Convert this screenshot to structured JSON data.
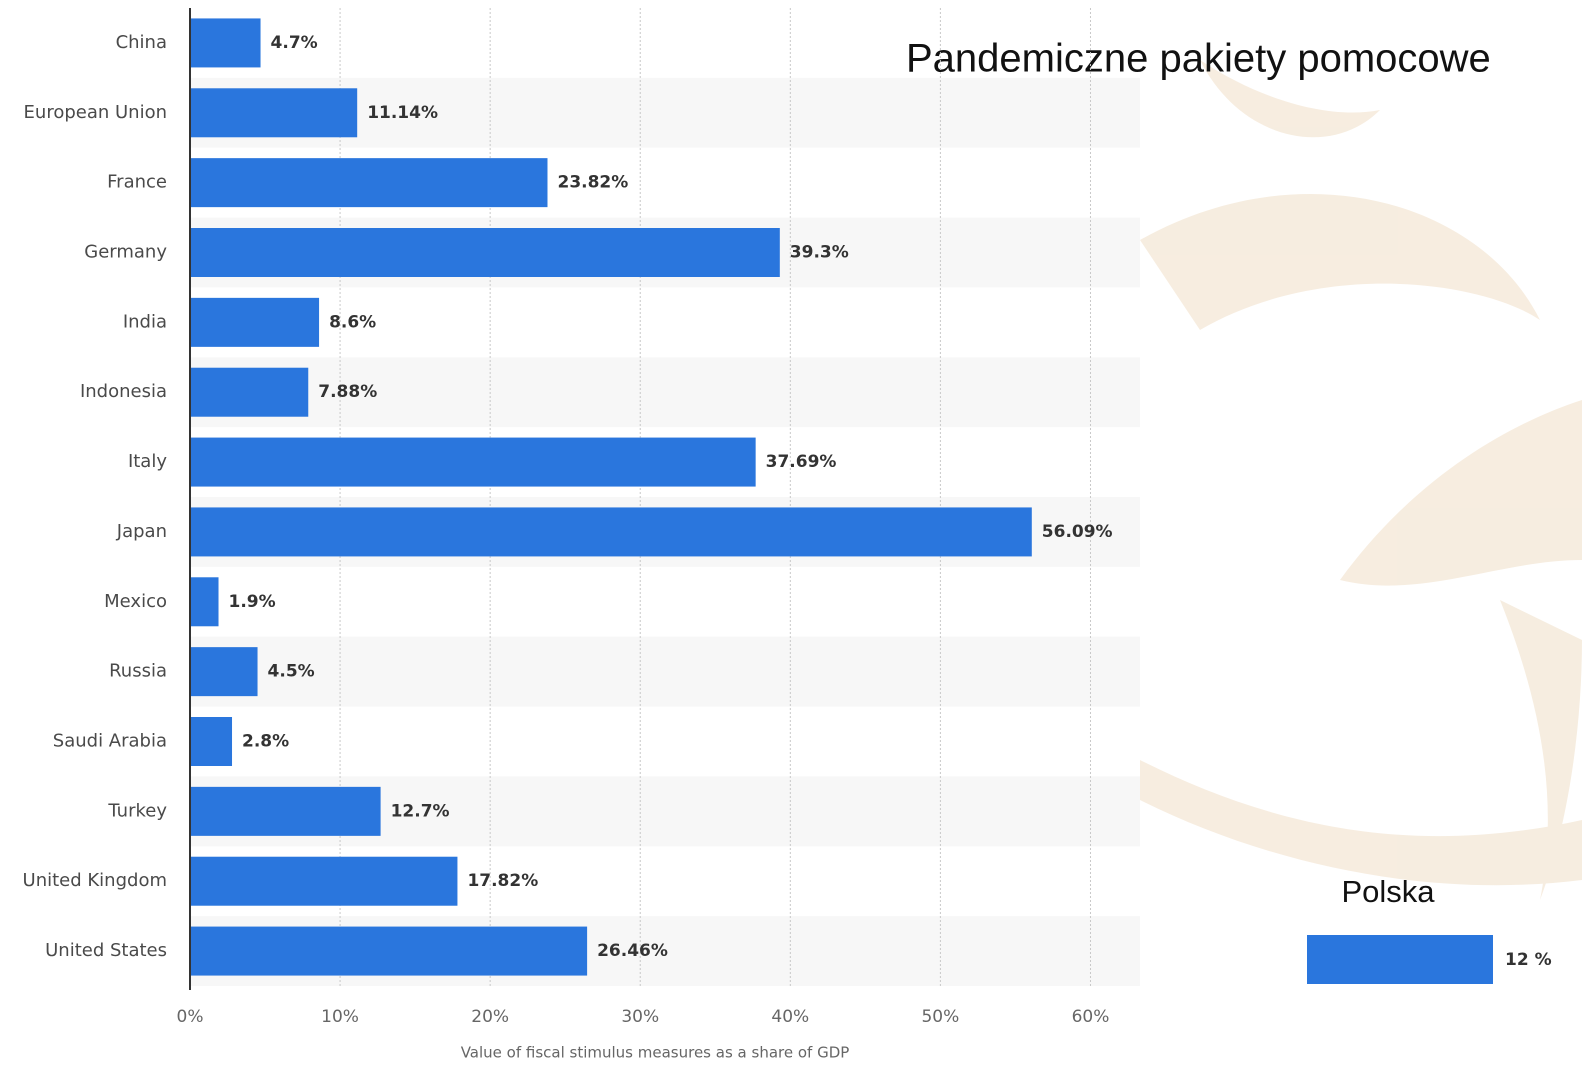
{
  "title": "Pandemiczne pakiety pomocowe",
  "chart_data": {
    "type": "bar",
    "orientation": "horizontal",
    "categories": [
      "China",
      "European Union",
      "France",
      "Germany",
      "India",
      "Indonesia",
      "Italy",
      "Japan",
      "Mexico",
      "Russia",
      "Saudi Arabia",
      "Turkey",
      "United Kingdom",
      "United States"
    ],
    "values": [
      4.7,
      11.14,
      23.82,
      39.3,
      8.6,
      7.88,
      37.69,
      56.09,
      1.9,
      4.5,
      2.8,
      12.7,
      17.82,
      26.46
    ],
    "value_labels": [
      "4.7%",
      "11.14%",
      "23.82%",
      "39.3%",
      "8.6%",
      "7.88%",
      "37.69%",
      "56.09%",
      "1.9%",
      "4.5%",
      "2.8%",
      "12.7%",
      "17.82%",
      "26.46%"
    ],
    "color": "#2a76dd",
    "xlim": [
      0,
      63.3
    ],
    "xticks": [
      {
        "value": 0,
        "label": "0%"
      },
      {
        "value": 10,
        "label": "10%"
      },
      {
        "value": 20,
        "label": "20%"
      },
      {
        "value": 30,
        "label": "30%"
      },
      {
        "value": 40,
        "label": "40%"
      },
      {
        "value": 50,
        "label": "50%"
      },
      {
        "value": 60,
        "label": "60%"
      }
    ],
    "xlabel": "Value of fiscal stimulus measures as a share of GDP",
    "grid": true
  },
  "inset": {
    "type": "bar",
    "categories": [
      "Polska"
    ],
    "values": [
      12
    ],
    "value_labels": [
      "12 %"
    ],
    "color": "#2a76dd"
  }
}
